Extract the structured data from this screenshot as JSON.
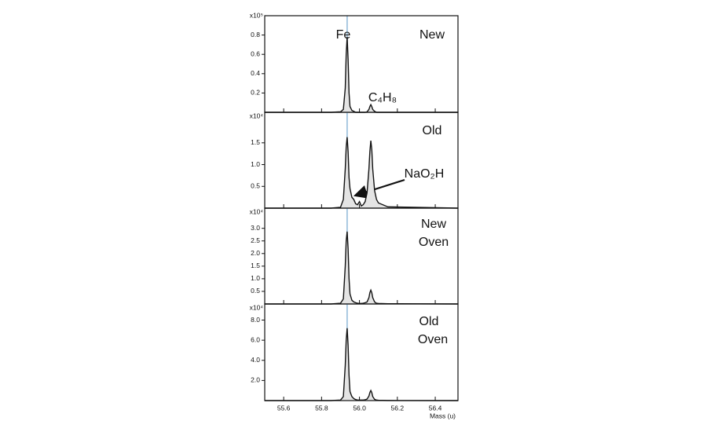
{
  "chart_data": [
    {
      "type": "line",
      "scale_label": "x10⁵",
      "annotations": [
        "Fe",
        "New",
        "C₄H₈"
      ],
      "reference_x": 55.935,
      "xlim": [
        55.5,
        56.52
      ],
      "ylim": [
        0,
        1.0
      ],
      "yticks": [
        0.2,
        0.4,
        0.6,
        0.8
      ],
      "x": [
        55.5,
        55.85,
        55.9,
        55.915,
        55.925,
        55.93,
        55.935,
        55.94,
        55.945,
        55.95,
        55.96,
        55.97,
        55.98,
        55.99,
        56.0,
        56.01,
        56.02,
        56.03,
        56.04,
        56.05,
        56.055,
        56.06,
        56.065,
        56.07,
        56.08,
        56.09,
        56.1,
        56.15,
        56.52
      ],
      "values": [
        0,
        0,
        0.005,
        0.03,
        0.25,
        0.6,
        0.78,
        0.55,
        0.2,
        0.06,
        0.02,
        0.01,
        0,
        0,
        0,
        0,
        0,
        0,
        0.005,
        0.03,
        0.06,
        0.08,
        0.06,
        0.03,
        0.01,
        0,
        0,
        0,
        0
      ],
      "color": "#111111"
    },
    {
      "type": "line",
      "scale_label": "x10⁴",
      "annotations": [
        "Old",
        "NaO₂H"
      ],
      "reference_x": 55.935,
      "xlim": [
        55.5,
        56.52
      ],
      "ylim": [
        0,
        2.2
      ],
      "yticks": [
        0.5,
        {
          "value": 1,
          "label": "1.0"
        },
        1.5
      ],
      "x": [
        55.5,
        55.85,
        55.9,
        55.915,
        55.925,
        55.93,
        55.935,
        55.94,
        55.945,
        55.95,
        55.96,
        55.97,
        55.98,
        55.99,
        56.0,
        56.01,
        56.02,
        56.03,
        56.04,
        56.05,
        56.055,
        56.06,
        56.065,
        56.07,
        56.08,
        56.09,
        56.1,
        56.15,
        56.52
      ],
      "values": [
        0,
        0,
        0.02,
        0.2,
        0.9,
        1.4,
        1.63,
        1.3,
        0.7,
        0.45,
        0.25,
        0.2,
        0.1,
        0.08,
        0.15,
        0.05,
        0.08,
        0.15,
        0.35,
        0.9,
        1.3,
        1.55,
        1.35,
        0.9,
        0.4,
        0.2,
        0.12,
        0.03,
        0
      ],
      "color": "#111111"
    },
    {
      "type": "line",
      "scale_label": "x10⁴",
      "annotations": [
        "New",
        "Oven"
      ],
      "reference_x": 55.935,
      "xlim": [
        55.5,
        56.52
      ],
      "ylim": [
        0,
        3.8
      ],
      "yticks": [
        0.5,
        {
          "value": 1,
          "label": "1.0"
        },
        1.5,
        {
          "value": 2,
          "label": "2.0"
        },
        2.5,
        {
          "value": 3,
          "label": "3.0"
        }
      ],
      "x": [
        55.5,
        55.85,
        55.9,
        55.915,
        55.925,
        55.93,
        55.935,
        55.94,
        55.945,
        55.95,
        55.96,
        55.97,
        55.98,
        55.99,
        56.0,
        56.01,
        56.02,
        56.03,
        56.04,
        56.05,
        56.055,
        56.06,
        56.065,
        56.07,
        56.08,
        56.09,
        56.1,
        56.15,
        56.52
      ],
      "values": [
        0,
        0,
        0.03,
        0.2,
        1.5,
        2.5,
        2.87,
        2.2,
        1.0,
        0.4,
        0.15,
        0.08,
        0.05,
        0.03,
        0.02,
        0.02,
        0.03,
        0.05,
        0.08,
        0.25,
        0.45,
        0.55,
        0.45,
        0.25,
        0.08,
        0.03,
        0.02,
        0.01,
        0
      ],
      "color": "#111111"
    },
    {
      "type": "line",
      "scale_label": "x10⁴",
      "annotations": [
        "Old",
        "Oven"
      ],
      "reference_x": 55.935,
      "xlabel": "Mass (u)",
      "xlim": [
        55.5,
        56.52
      ],
      "ylim": [
        0,
        9.6
      ],
      "yticks": [
        {
          "value": 2,
          "label": "2.0"
        },
        {
          "value": 4,
          "label": "4.0"
        },
        {
          "value": 6,
          "label": "6.0"
        },
        {
          "value": 8,
          "label": "8.0"
        }
      ],
      "xticks": [
        55.6,
        55.8,
        {
          "value": 56,
          "label": "56.0"
        },
        56.2,
        56.4
      ],
      "x": [
        55.5,
        55.85,
        55.9,
        55.915,
        55.925,
        55.93,
        55.935,
        55.94,
        55.945,
        55.95,
        55.96,
        55.97,
        55.98,
        55.99,
        56.0,
        56.01,
        56.02,
        56.03,
        56.04,
        56.05,
        56.055,
        56.06,
        56.065,
        56.07,
        56.08,
        56.09,
        56.1,
        56.15,
        56.52
      ],
      "values": [
        0,
        0,
        0.05,
        0.4,
        3.5,
        6.0,
        7.2,
        5.5,
        2.5,
        0.9,
        0.4,
        0.2,
        0.1,
        0.05,
        0.05,
        0.05,
        0.05,
        0.08,
        0.15,
        0.45,
        0.8,
        1.0,
        0.8,
        0.4,
        0.12,
        0.05,
        0.03,
        0.01,
        0
      ],
      "color": "#111111"
    }
  ]
}
